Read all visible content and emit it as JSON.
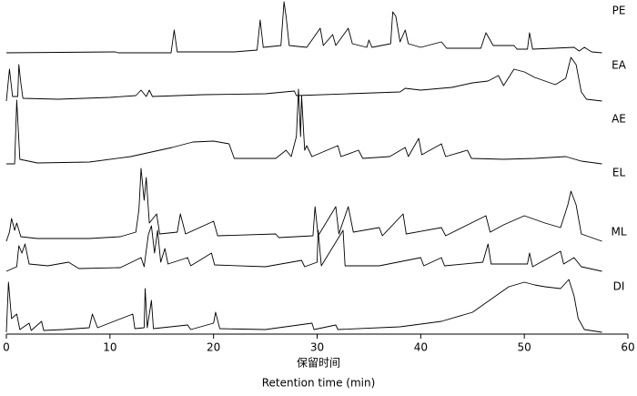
{
  "chart_data": {
    "type": "line",
    "x_label_cn": "保留时间",
    "x_label": "Retention time (min)",
    "xlim": [
      0,
      60
    ],
    "xticks": [
      0,
      10,
      20,
      30,
      40,
      50,
      60
    ],
    "series": [
      {
        "name": "PE",
        "color": "#000000",
        "x": [
          0,
          10.5,
          10.8,
          15.9,
          16.2,
          16.5,
          22,
          24.2,
          24.5,
          24.8,
          26.5,
          26.8,
          27,
          27.3,
          29,
          30.3,
          30.6,
          31.5,
          31.8,
          33,
          33.4,
          34.8,
          35,
          35.3,
          37.1,
          37.3,
          37.6,
          38,
          38.5,
          38.8,
          40,
          42,
          42.5,
          45.8,
          46.3,
          47,
          49,
          49.3,
          50.3,
          50.5,
          50.8,
          54.8,
          55.3,
          55.8,
          56.5,
          57.5
        ],
        "values": [
          0,
          1,
          0,
          0,
          25,
          1,
          1,
          3,
          36,
          6,
          8,
          56,
          40,
          8,
          6,
          27,
          8,
          20,
          8,
          27,
          10,
          6,
          14,
          6,
          10,
          45,
          40,
          12,
          25,
          10,
          6,
          12,
          5,
          5,
          22,
          8,
          8,
          4,
          4,
          22,
          4,
          6,
          2,
          6,
          1,
          0
        ]
      },
      {
        "name": "EA",
        "color": "#000000",
        "x": [
          0,
          0.3,
          0.6,
          1.1,
          1.2,
          1.4,
          1.6,
          5,
          10,
          12.5,
          13,
          13.5,
          13.8,
          14.1,
          19,
          25,
          27.8,
          28,
          33,
          38,
          38.5,
          40,
          43,
          45,
          46.5,
          47.5,
          48,
          49,
          50,
          51,
          52,
          53,
          54,
          54.5,
          55,
          55.5,
          56,
          57.5
        ],
        "values": [
          0,
          35,
          5,
          5,
          40,
          20,
          3,
          2,
          4,
          6,
          12,
          5,
          12,
          5,
          7,
          8,
          11,
          6,
          8,
          10,
          14,
          12,
          15,
          20,
          22,
          28,
          17,
          35,
          32,
          26,
          22,
          18,
          25,
          48,
          40,
          10,
          2,
          0
        ]
      },
      {
        "name": "AE",
        "color": "#000000",
        "x": [
          0,
          0.8,
          1,
          1.3,
          3,
          8,
          12,
          16,
          18,
          20,
          21.5,
          22,
          26,
          27,
          27.5,
          28,
          28.2,
          28.4,
          28.5,
          28.8,
          29,
          29.5,
          32,
          32.3,
          34,
          34.4,
          37,
          38.5,
          38.8,
          39.8,
          40.1,
          42,
          42.4,
          44.5,
          44.9,
          48,
          51,
          54,
          55.5,
          57.5
        ],
        "values": [
          0,
          0,
          70,
          5,
          1,
          2,
          8,
          18,
          24,
          25,
          22,
          6,
          6,
          15,
          8,
          30,
          82,
          30,
          75,
          15,
          20,
          8,
          20,
          8,
          15,
          6,
          8,
          18,
          8,
          28,
          10,
          22,
          8,
          15,
          6,
          5,
          6,
          8,
          3,
          0
        ]
      },
      {
        "name": "EL",
        "color": "#000000",
        "x": [
          0,
          0.3,
          0.5,
          0.8,
          1,
          1.4,
          3,
          8,
          11,
          12.5,
          12.8,
          13,
          13.3,
          13.5,
          13.8,
          14.5,
          14.8,
          16.5,
          16.8,
          17.3,
          20,
          20.4,
          26,
          26.3,
          29.6,
          29.8,
          30.1,
          31.8,
          32.1,
          33,
          33.5,
          36,
          36.3,
          38.3,
          38.6,
          42,
          42.4,
          46.3,
          46.7,
          48,
          50,
          52,
          53.5,
          54.2,
          54.5,
          55,
          55.5,
          57.5
        ],
        "values": [
          0,
          10,
          25,
          12,
          20,
          5,
          3,
          3,
          5,
          10,
          35,
          80,
          45,
          70,
          20,
          30,
          8,
          10,
          30,
          8,
          22,
          6,
          8,
          4,
          6,
          38,
          6,
          38,
          8,
          38,
          10,
          15,
          6,
          30,
          8,
          15,
          6,
          28,
          10,
          18,
          28,
          20,
          15,
          40,
          55,
          40,
          8,
          0
        ]
      },
      {
        "name": "ML",
        "color": "#000000",
        "x": [
          0,
          1,
          1.2,
          1.5,
          1.8,
          2.2,
          4,
          6,
          7,
          11,
          13,
          13.3,
          13.7,
          14,
          14.3,
          14.6,
          14.9,
          15.3,
          15.6,
          17.5,
          17.8,
          19.8,
          20.1,
          25,
          28.5,
          28.8,
          30,
          30.1,
          30.4,
          32.5,
          32.7,
          36,
          40,
          40.3,
          42,
          42.3,
          46,
          46.5,
          46.8,
          50.3,
          50.5,
          50.8,
          53.5,
          53.8,
          54.8,
          55.5,
          57.5
        ],
        "values": [
          0,
          5,
          28,
          20,
          30,
          8,
          6,
          10,
          3,
          4,
          15,
          5,
          40,
          50,
          20,
          45,
          10,
          25,
          8,
          15,
          6,
          20,
          7,
          5,
          12,
          5,
          10,
          45,
          6,
          45,
          6,
          6,
          15,
          6,
          15,
          6,
          10,
          30,
          8,
          8,
          20,
          5,
          22,
          8,
          15,
          5,
          0
        ]
      },
      {
        "name": "DI",
        "color": "#000000",
        "x": [
          0,
          0.2,
          0.5,
          1,
          1.3,
          2.2,
          2.4,
          3.4,
          3.6,
          5.5,
          8,
          8.3,
          8.8,
          12.2,
          12.4,
          13.3,
          13.4,
          13.6,
          14,
          14.2,
          17.5,
          17.8,
          20,
          20.2,
          20.6,
          25,
          29.5,
          29.7,
          31.8,
          32,
          38,
          42,
          45,
          47,
          48.5,
          50,
          51,
          52,
          53.5,
          54.3,
          54.8,
          55.2,
          55.8,
          57.5
        ],
        "values": [
          0,
          55,
          15,
          20,
          3,
          10,
          2,
          12,
          2,
          3,
          5,
          20,
          5,
          20,
          4,
          5,
          48,
          5,
          35,
          4,
          8,
          3,
          10,
          22,
          4,
          3,
          10,
          3,
          8,
          3,
          6,
          12,
          22,
          38,
          50,
          55,
          52,
          50,
          48,
          58,
          40,
          15,
          3,
          0
        ]
      }
    ]
  }
}
